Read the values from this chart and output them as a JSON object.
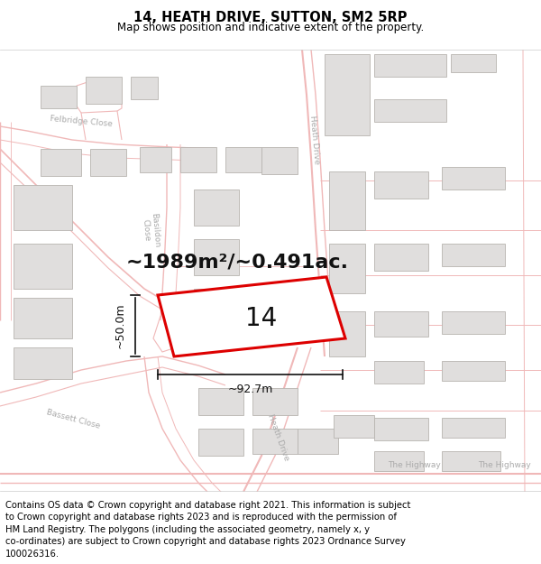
{
  "title": "14, HEATH DRIVE, SUTTON, SM2 5RP",
  "subtitle": "Map shows position and indicative extent of the property.",
  "title_fontsize": 10.5,
  "subtitle_fontsize": 8.5,
  "footer_text": "Contains OS data © Crown copyright and database right 2021. This information is subject\nto Crown copyright and database rights 2023 and is reproduced with the permission of\nHM Land Registry. The polygons (including the associated geometry, namely x, y\nco-ordinates) are subject to Crown copyright and database rights 2023 Ordnance Survey\n100026316.",
  "footer_fontsize": 7.2,
  "map_bg": "#ffffff",
  "road_color": "#f0b8b8",
  "road_lw": 0.8,
  "building_fill": "#e0dedd",
  "building_edge": "#b8b4b0",
  "plot_outline_color": "#dd0000",
  "plot_fill_color": "#ffffff",
  "annotation_color": "#111111",
  "dim_line_color": "#111111",
  "area_text": "~1989m²/~0.491ac.",
  "area_fontsize": 16,
  "label_14_fontsize": 20,
  "dim_width_text": "~92.7m",
  "dim_height_text": "~50.0m",
  "dim_fontsize": 9,
  "road_label_color": "#aaaaaa",
  "road_label_fontsize": 6.5
}
